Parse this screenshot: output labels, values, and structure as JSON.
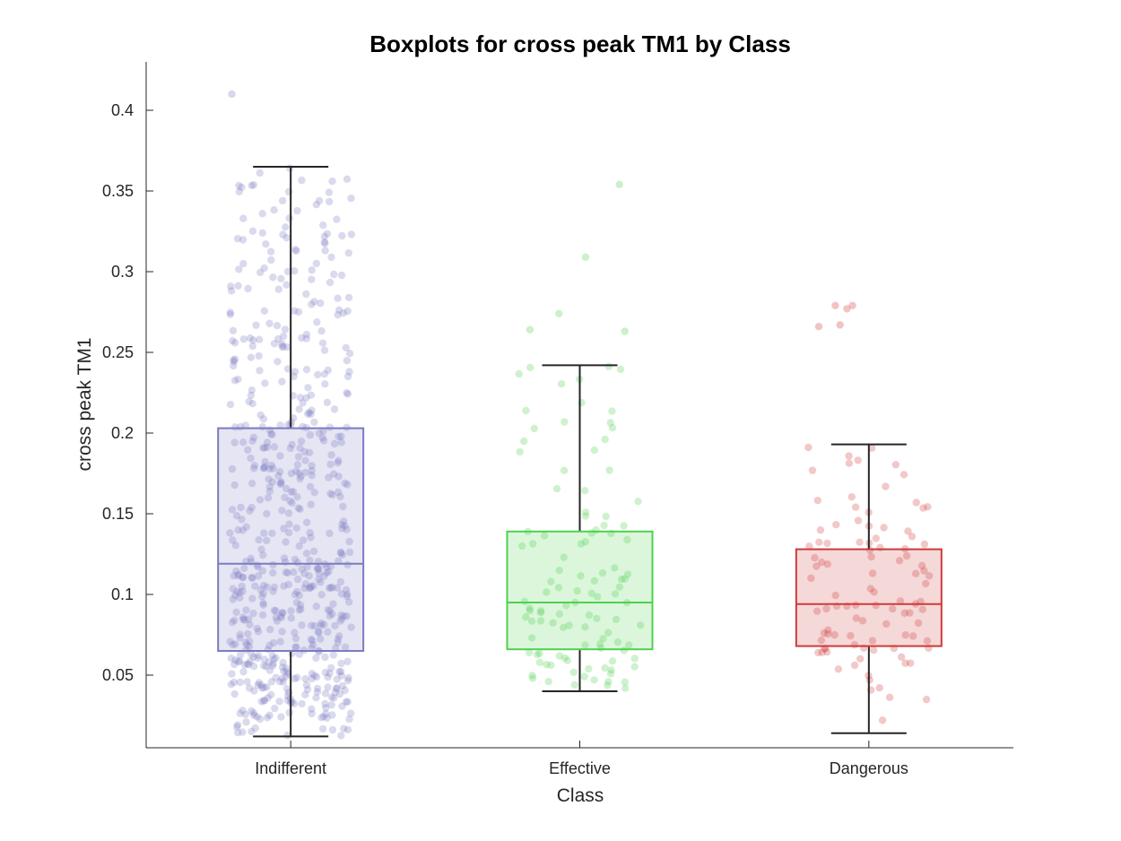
{
  "chart_data": {
    "type": "box",
    "title": "Boxplots for cross peak TM1 by Class",
    "xlabel": "Class",
    "ylabel": "cross peak TM1",
    "ylim": [
      0.005,
      0.43
    ],
    "yticks": [
      0.05,
      0.1,
      0.15,
      0.2,
      0.25,
      0.3,
      0.35,
      0.4
    ],
    "ytick_labels": [
      "0.05",
      "0.1",
      "0.15",
      "0.2",
      "0.25",
      "0.3",
      "0.35",
      "0.4"
    ],
    "categories": [
      "Indifferent",
      "Effective",
      "Dangerous"
    ],
    "grid": false,
    "legend": "none",
    "groups": [
      {
        "name": "Indifferent",
        "color": "#7b7bc2",
        "box_fill": "#e9e9f5",
        "min": 0.012,
        "q1": 0.065,
        "median": 0.119,
        "q3": 0.203,
        "max": 0.365,
        "outliers": [
          0.41
        ],
        "point_count": 620
      },
      {
        "name": "Effective",
        "color": "#4fd14f",
        "box_fill": "#d8f5d8",
        "min": 0.04,
        "q1": 0.066,
        "median": 0.095,
        "q3": 0.139,
        "max": 0.242,
        "outliers": [
          0.354,
          0.309,
          0.274,
          0.264,
          0.263
        ],
        "point_count": 110
      },
      {
        "name": "Dangerous",
        "color": "#cf3a3a",
        "box_fill": "#f5d6d6",
        "min": 0.014,
        "q1": 0.068,
        "median": 0.094,
        "q3": 0.128,
        "max": 0.193,
        "outliers": [
          0.279,
          0.279,
          0.277,
          0.267,
          0.266
        ],
        "point_count": 100
      }
    ]
  }
}
